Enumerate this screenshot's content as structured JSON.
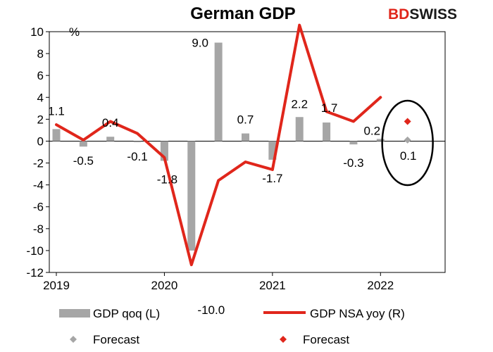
{
  "brand": {
    "part1": "BD",
    "part2": "SWISS",
    "accent": "#e0261b"
  },
  "chart_data": {
    "type": "bar+line",
    "title": "German GDP",
    "unit_label": "%",
    "ylim": [
      -12,
      10
    ],
    "yticks": [
      10,
      8,
      6,
      4,
      2,
      0,
      -2,
      -4,
      -6,
      -8,
      -10,
      -12
    ],
    "x_range": [
      2019.0,
      2022.5
    ],
    "xticks": [
      {
        "x": 2019,
        "label": "2019"
      },
      {
        "x": 2020,
        "label": "2020"
      },
      {
        "x": 2021,
        "label": "2021"
      },
      {
        "x": 2022,
        "label": "2022"
      }
    ],
    "series": [
      {
        "name": "GDP qoq (L)",
        "kind": "bar",
        "color": "#a6a6a6",
        "points": [
          {
            "x": 2019.0,
            "y": 1.1,
            "label": "1.1"
          },
          {
            "x": 2019.25,
            "y": -0.5,
            "label": "-0.5"
          },
          {
            "x": 2019.5,
            "y": 0.4,
            "label": "0.4"
          },
          {
            "x": 2019.75,
            "y": -0.1,
            "label": "-0.1"
          },
          {
            "x": 2020.0,
            "y": -1.8,
            "label": "-1.8"
          },
          {
            "x": 2020.25,
            "y": -10.0,
            "label": "-10.0"
          },
          {
            "x": 2020.5,
            "y": 9.0,
            "label": "9.0"
          },
          {
            "x": 2020.75,
            "y": 0.7,
            "label": "0.7"
          },
          {
            "x": 2021.0,
            "y": -1.7,
            "label": "-1.7"
          },
          {
            "x": 2021.25,
            "y": 2.2,
            "label": "2.2"
          },
          {
            "x": 2021.5,
            "y": 1.7,
            "label": "1.7"
          },
          {
            "x": 2021.75,
            "y": -0.3,
            "label": "-0.3"
          },
          {
            "x": 2022.0,
            "y": 0.2,
            "label": "0.2"
          }
        ]
      },
      {
        "name": "GDP NSA yoy (R)",
        "kind": "line",
        "color": "#e0261b",
        "points": [
          {
            "x": 2019.0,
            "y": 1.5
          },
          {
            "x": 2019.25,
            "y": 0.1
          },
          {
            "x": 2019.5,
            "y": 1.8
          },
          {
            "x": 2019.75,
            "y": 0.7
          },
          {
            "x": 2020.0,
            "y": -1.5
          },
          {
            "x": 2020.25,
            "y": -11.3
          },
          {
            "x": 2020.5,
            "y": -3.6
          },
          {
            "x": 2020.75,
            "y": -1.9
          },
          {
            "x": 2021.0,
            "y": -2.6
          },
          {
            "x": 2021.25,
            "y": 10.6
          },
          {
            "x": 2021.5,
            "y": 2.7
          },
          {
            "x": 2021.75,
            "y": 1.8
          },
          {
            "x": 2022.0,
            "y": 4.0
          }
        ]
      },
      {
        "name": "Forecast",
        "kind": "marker",
        "color": "#a6a6a6",
        "points": [
          {
            "x": 2022.25,
            "y": 0.1,
            "label": "0.1"
          }
        ]
      },
      {
        "name": "Forecast",
        "kind": "marker",
        "color": "#e0261b",
        "points": [
          {
            "x": 2022.25,
            "y": 1.8
          }
        ]
      }
    ],
    "highlight": "ellipse around 2022 Q2 forecast markers",
    "legend": [
      {
        "label": "GDP qoq (L)",
        "symbol": "bar",
        "color": "#a6a6a6"
      },
      {
        "label": "GDP NSA yoy (R)",
        "symbol": "line",
        "color": "#e0261b"
      },
      {
        "label": "Forecast",
        "symbol": "diamond",
        "color": "#a6a6a6"
      },
      {
        "label": "Forecast",
        "symbol": "diamond",
        "color": "#e0261b"
      }
    ]
  }
}
